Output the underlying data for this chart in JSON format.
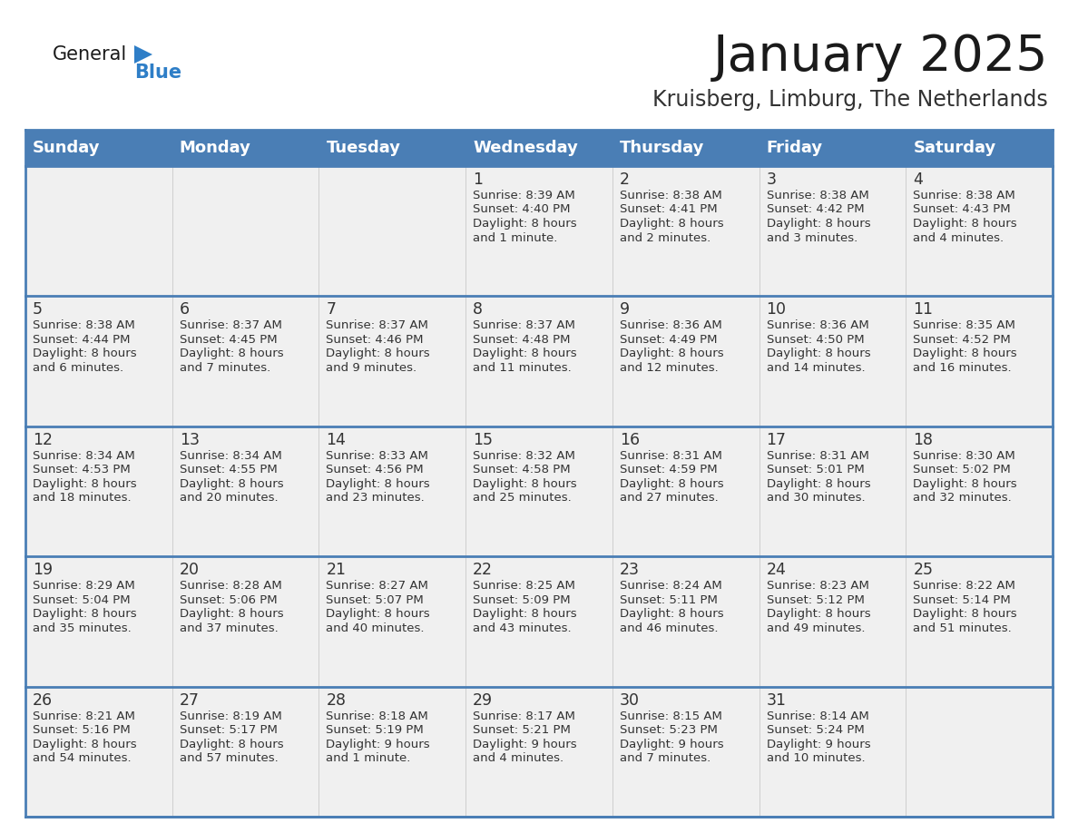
{
  "title": "January 2025",
  "subtitle": "Kruisberg, Limburg, The Netherlands",
  "days_of_week": [
    "Sunday",
    "Monday",
    "Tuesday",
    "Wednesday",
    "Thursday",
    "Friday",
    "Saturday"
  ],
  "header_bg": "#4A7EB5",
  "header_text": "#FFFFFF",
  "cell_bg": "#F0F0F0",
  "row_sep_color": "#4A7EB5",
  "col_sep_color": "#CCCCCC",
  "text_color": "#333333",
  "title_color": "#1A1A1A",
  "subtitle_color": "#333333",
  "general_color": "#1A1A1A",
  "blue_color": "#2E7EC7",
  "calendar_data": [
    [
      {
        "day": null,
        "sunrise": null,
        "sunset": null,
        "daylight": null
      },
      {
        "day": null,
        "sunrise": null,
        "sunset": null,
        "daylight": null
      },
      {
        "day": null,
        "sunrise": null,
        "sunset": null,
        "daylight": null
      },
      {
        "day": 1,
        "sunrise": "8:39 AM",
        "sunset": "4:40 PM",
        "daylight": "8 hours and 1 minute."
      },
      {
        "day": 2,
        "sunrise": "8:38 AM",
        "sunset": "4:41 PM",
        "daylight": "8 hours and 2 minutes."
      },
      {
        "day": 3,
        "sunrise": "8:38 AM",
        "sunset": "4:42 PM",
        "daylight": "8 hours and 3 minutes."
      },
      {
        "day": 4,
        "sunrise": "8:38 AM",
        "sunset": "4:43 PM",
        "daylight": "8 hours and 4 minutes."
      }
    ],
    [
      {
        "day": 5,
        "sunrise": "8:38 AM",
        "sunset": "4:44 PM",
        "daylight": "8 hours and 6 minutes."
      },
      {
        "day": 6,
        "sunrise": "8:37 AM",
        "sunset": "4:45 PM",
        "daylight": "8 hours and 7 minutes."
      },
      {
        "day": 7,
        "sunrise": "8:37 AM",
        "sunset": "4:46 PM",
        "daylight": "8 hours and 9 minutes."
      },
      {
        "day": 8,
        "sunrise": "8:37 AM",
        "sunset": "4:48 PM",
        "daylight": "8 hours and 11 minutes."
      },
      {
        "day": 9,
        "sunrise": "8:36 AM",
        "sunset": "4:49 PM",
        "daylight": "8 hours and 12 minutes."
      },
      {
        "day": 10,
        "sunrise": "8:36 AM",
        "sunset": "4:50 PM",
        "daylight": "8 hours and 14 minutes."
      },
      {
        "day": 11,
        "sunrise": "8:35 AM",
        "sunset": "4:52 PM",
        "daylight": "8 hours and 16 minutes."
      }
    ],
    [
      {
        "day": 12,
        "sunrise": "8:34 AM",
        "sunset": "4:53 PM",
        "daylight": "8 hours and 18 minutes."
      },
      {
        "day": 13,
        "sunrise": "8:34 AM",
        "sunset": "4:55 PM",
        "daylight": "8 hours and 20 minutes."
      },
      {
        "day": 14,
        "sunrise": "8:33 AM",
        "sunset": "4:56 PM",
        "daylight": "8 hours and 23 minutes."
      },
      {
        "day": 15,
        "sunrise": "8:32 AM",
        "sunset": "4:58 PM",
        "daylight": "8 hours and 25 minutes."
      },
      {
        "day": 16,
        "sunrise": "8:31 AM",
        "sunset": "4:59 PM",
        "daylight": "8 hours and 27 minutes."
      },
      {
        "day": 17,
        "sunrise": "8:31 AM",
        "sunset": "5:01 PM",
        "daylight": "8 hours and 30 minutes."
      },
      {
        "day": 18,
        "sunrise": "8:30 AM",
        "sunset": "5:02 PM",
        "daylight": "8 hours and 32 minutes."
      }
    ],
    [
      {
        "day": 19,
        "sunrise": "8:29 AM",
        "sunset": "5:04 PM",
        "daylight": "8 hours and 35 minutes."
      },
      {
        "day": 20,
        "sunrise": "8:28 AM",
        "sunset": "5:06 PM",
        "daylight": "8 hours and 37 minutes."
      },
      {
        "day": 21,
        "sunrise": "8:27 AM",
        "sunset": "5:07 PM",
        "daylight": "8 hours and 40 minutes."
      },
      {
        "day": 22,
        "sunrise": "8:25 AM",
        "sunset": "5:09 PM",
        "daylight": "8 hours and 43 minutes."
      },
      {
        "day": 23,
        "sunrise": "8:24 AM",
        "sunset": "5:11 PM",
        "daylight": "8 hours and 46 minutes."
      },
      {
        "day": 24,
        "sunrise": "8:23 AM",
        "sunset": "5:12 PM",
        "daylight": "8 hours and 49 minutes."
      },
      {
        "day": 25,
        "sunrise": "8:22 AM",
        "sunset": "5:14 PM",
        "daylight": "8 hours and 51 minutes."
      }
    ],
    [
      {
        "day": 26,
        "sunrise": "8:21 AM",
        "sunset": "5:16 PM",
        "daylight": "8 hours and 54 minutes."
      },
      {
        "day": 27,
        "sunrise": "8:19 AM",
        "sunset": "5:17 PM",
        "daylight": "8 hours and 57 minutes."
      },
      {
        "day": 28,
        "sunrise": "8:18 AM",
        "sunset": "5:19 PM",
        "daylight": "9 hours and 1 minute."
      },
      {
        "day": 29,
        "sunrise": "8:17 AM",
        "sunset": "5:21 PM",
        "daylight": "9 hours and 4 minutes."
      },
      {
        "day": 30,
        "sunrise": "8:15 AM",
        "sunset": "5:23 PM",
        "daylight": "9 hours and 7 minutes."
      },
      {
        "day": 31,
        "sunrise": "8:14 AM",
        "sunset": "5:24 PM",
        "daylight": "9 hours and 10 minutes."
      },
      {
        "day": null,
        "sunrise": null,
        "sunset": null,
        "daylight": null
      }
    ]
  ]
}
